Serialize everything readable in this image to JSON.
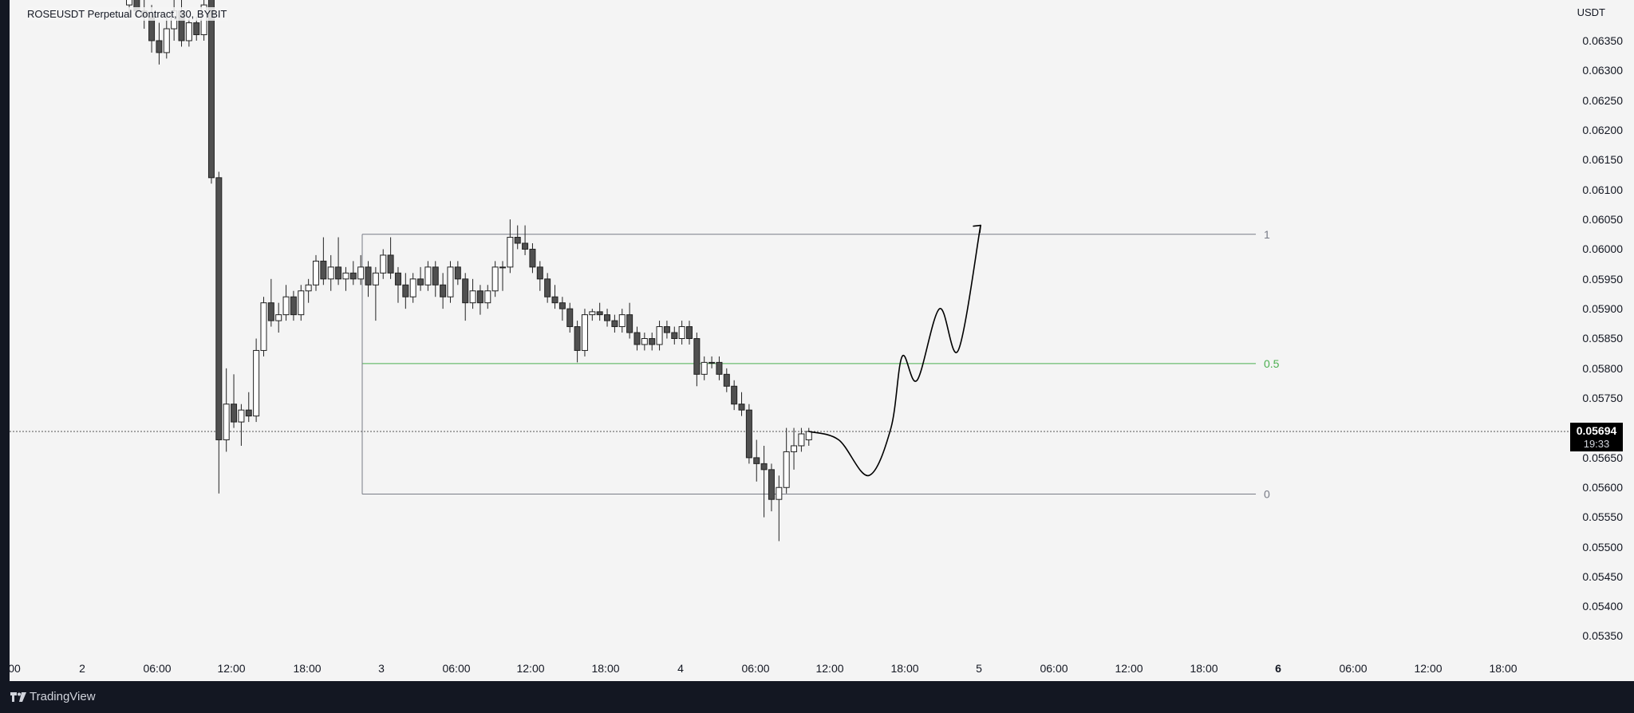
{
  "header": {
    "symbol_title": "ROSEUSDT Perpetual Contract, 30, BYBIT"
  },
  "price_axis": {
    "currency": "USDT",
    "ticks": [
      "0.06350",
      "0.06300",
      "0.06250",
      "0.06200",
      "0.06150",
      "0.06100",
      "0.06050",
      "0.06000",
      "0.05950",
      "0.05900",
      "0.05850",
      "0.05800",
      "0.05750",
      "0.05650",
      "0.05600",
      "0.05550",
      "0.05500",
      "0.05450",
      "0.05400",
      "0.05350"
    ]
  },
  "price_tag": {
    "price": "0.05694",
    "countdown": "19:33"
  },
  "time_axis": {
    "ticks": [
      "00",
      "2",
      "06:00",
      "12:00",
      "18:00",
      "3",
      "06:00",
      "12:00",
      "18:00",
      "4",
      "06:00",
      "12:00",
      "18:00",
      "5",
      "06:00",
      "12:00",
      "18:00",
      "6",
      "06:00",
      "12:00",
      "18:00"
    ]
  },
  "footer": {
    "brand": "TradingView"
  },
  "colors": {
    "up_candle": "#ffffff",
    "down_candle": "#505050",
    "fib_gray": "#787b86",
    "fib_green": "#4caf50",
    "background": "#f4f4f4",
    "footer_bg": "#131722"
  },
  "chart_data": {
    "type": "candlestick",
    "title": "ROSEUSDT Perpetual Contract, 30, BYBIT",
    "ylim": [
      0.053,
      0.0645
    ],
    "current_price": 0.05694,
    "fib_levels": [
      {
        "label": "1",
        "price": 0.06025
      },
      {
        "label": "0.5",
        "price": 0.05808
      },
      {
        "label": "0",
        "price": 0.05589
      }
    ],
    "candles": [
      {
        "o": 0.0641,
        "h": 0.0646,
        "l": 0.0639,
        "c": 0.0642
      },
      {
        "o": 0.0642,
        "h": 0.0645,
        "l": 0.0639,
        "c": 0.064
      },
      {
        "o": 0.064,
        "h": 0.0643,
        "l": 0.0637,
        "c": 0.0639
      },
      {
        "o": 0.0639,
        "h": 0.0641,
        "l": 0.0633,
        "c": 0.0635
      },
      {
        "o": 0.0635,
        "h": 0.0638,
        "l": 0.0631,
        "c": 0.0633
      },
      {
        "o": 0.0633,
        "h": 0.0639,
        "l": 0.0632,
        "c": 0.0637
      },
      {
        "o": 0.0637,
        "h": 0.0642,
        "l": 0.0635,
        "c": 0.064
      },
      {
        "o": 0.064,
        "h": 0.0642,
        "l": 0.0634,
        "c": 0.0635
      },
      {
        "o": 0.0635,
        "h": 0.0639,
        "l": 0.0634,
        "c": 0.0638
      },
      {
        "o": 0.0638,
        "h": 0.0639,
        "l": 0.0635,
        "c": 0.0636
      },
      {
        "o": 0.0636,
        "h": 0.0642,
        "l": 0.0635,
        "c": 0.0641
      },
      {
        "o": 0.0645,
        "h": 0.0646,
        "l": 0.0611,
        "c": 0.0612
      },
      {
        "o": 0.0612,
        "h": 0.0613,
        "l": 0.0559,
        "c": 0.0568
      },
      {
        "o": 0.0568,
        "h": 0.058,
        "l": 0.0566,
        "c": 0.0574
      },
      {
        "o": 0.0574,
        "h": 0.0579,
        "l": 0.057,
        "c": 0.0571
      },
      {
        "o": 0.0571,
        "h": 0.0574,
        "l": 0.0567,
        "c": 0.0573
      },
      {
        "o": 0.0573,
        "h": 0.0576,
        "l": 0.0571,
        "c": 0.0572
      },
      {
        "o": 0.0572,
        "h": 0.0585,
        "l": 0.0571,
        "c": 0.0583
      },
      {
        "o": 0.0583,
        "h": 0.0592,
        "l": 0.0582,
        "c": 0.0591
      },
      {
        "o": 0.0591,
        "h": 0.0595,
        "l": 0.0587,
        "c": 0.0588
      },
      {
        "o": 0.0588,
        "h": 0.0591,
        "l": 0.0586,
        "c": 0.0589
      },
      {
        "o": 0.0589,
        "h": 0.0594,
        "l": 0.0588,
        "c": 0.0592
      },
      {
        "o": 0.0592,
        "h": 0.0593,
        "l": 0.0588,
        "c": 0.0589
      },
      {
        "o": 0.0589,
        "h": 0.0594,
        "l": 0.0588,
        "c": 0.0593
      },
      {
        "o": 0.0593,
        "h": 0.0595,
        "l": 0.0591,
        "c": 0.0594
      },
      {
        "o": 0.0594,
        "h": 0.0599,
        "l": 0.0593,
        "c": 0.0598
      },
      {
        "o": 0.0598,
        "h": 0.0602,
        "l": 0.0594,
        "c": 0.0595
      },
      {
        "o": 0.0595,
        "h": 0.0599,
        "l": 0.0593,
        "c": 0.0597
      },
      {
        "o": 0.0597,
        "h": 0.0602,
        "l": 0.0594,
        "c": 0.0595
      },
      {
        "o": 0.0595,
        "h": 0.0597,
        "l": 0.0593,
        "c": 0.0596
      },
      {
        "o": 0.0596,
        "h": 0.0598,
        "l": 0.0594,
        "c": 0.0595
      },
      {
        "o": 0.0595,
        "h": 0.0599,
        "l": 0.0594,
        "c": 0.0597
      },
      {
        "o": 0.0597,
        "h": 0.0598,
        "l": 0.0592,
        "c": 0.0594
      },
      {
        "o": 0.0594,
        "h": 0.0597,
        "l": 0.0588,
        "c": 0.0596
      },
      {
        "o": 0.0596,
        "h": 0.06,
        "l": 0.0595,
        "c": 0.0599
      },
      {
        "o": 0.0599,
        "h": 0.0602,
        "l": 0.0595,
        "c": 0.0596
      },
      {
        "o": 0.0596,
        "h": 0.0597,
        "l": 0.0591,
        "c": 0.0594
      },
      {
        "o": 0.0594,
        "h": 0.0596,
        "l": 0.059,
        "c": 0.0592
      },
      {
        "o": 0.0592,
        "h": 0.0596,
        "l": 0.0591,
        "c": 0.0595
      },
      {
        "o": 0.0595,
        "h": 0.0597,
        "l": 0.0593,
        "c": 0.0594
      },
      {
        "o": 0.0594,
        "h": 0.0598,
        "l": 0.0593,
        "c": 0.0597
      },
      {
        "o": 0.0597,
        "h": 0.0598,
        "l": 0.0592,
        "c": 0.0594
      },
      {
        "o": 0.0594,
        "h": 0.0596,
        "l": 0.059,
        "c": 0.0592
      },
      {
        "o": 0.0592,
        "h": 0.0598,
        "l": 0.0591,
        "c": 0.0597
      },
      {
        "o": 0.0597,
        "h": 0.0598,
        "l": 0.0594,
        "c": 0.0595
      },
      {
        "o": 0.0595,
        "h": 0.0596,
        "l": 0.0588,
        "c": 0.0591
      },
      {
        "o": 0.0591,
        "h": 0.0595,
        "l": 0.059,
        "c": 0.0593
      },
      {
        "o": 0.0593,
        "h": 0.0594,
        "l": 0.0589,
        "c": 0.0591
      },
      {
        "o": 0.0591,
        "h": 0.0594,
        "l": 0.059,
        "c": 0.0593
      },
      {
        "o": 0.0593,
        "h": 0.0598,
        "l": 0.0592,
        "c": 0.0597
      },
      {
        "o": 0.0597,
        "h": 0.0598,
        "l": 0.0593,
        "c": 0.0597
      },
      {
        "o": 0.0597,
        "h": 0.0605,
        "l": 0.0596,
        "c": 0.0602
      },
      {
        "o": 0.0602,
        "h": 0.0604,
        "l": 0.06,
        "c": 0.0601
      },
      {
        "o": 0.0601,
        "h": 0.0604,
        "l": 0.0599,
        "c": 0.06
      },
      {
        "o": 0.06,
        "h": 0.0601,
        "l": 0.0596,
        "c": 0.0597
      },
      {
        "o": 0.0597,
        "h": 0.0598,
        "l": 0.0593,
        "c": 0.0595
      },
      {
        "o": 0.0595,
        "h": 0.0596,
        "l": 0.0591,
        "c": 0.0592
      },
      {
        "o": 0.0592,
        "h": 0.0594,
        "l": 0.059,
        "c": 0.0591
      },
      {
        "o": 0.0591,
        "h": 0.0592,
        "l": 0.0588,
        "c": 0.059
      },
      {
        "o": 0.059,
        "h": 0.0591,
        "l": 0.0586,
        "c": 0.0587
      },
      {
        "o": 0.0587,
        "h": 0.0588,
        "l": 0.0581,
        "c": 0.0583
      },
      {
        "o": 0.0583,
        "h": 0.059,
        "l": 0.0582,
        "c": 0.0589
      },
      {
        "o": 0.0589,
        "h": 0.059,
        "l": 0.0588,
        "c": 0.05895
      },
      {
        "o": 0.05895,
        "h": 0.0591,
        "l": 0.0588,
        "c": 0.0589
      },
      {
        "o": 0.0589,
        "h": 0.059,
        "l": 0.0587,
        "c": 0.0588
      },
      {
        "o": 0.0588,
        "h": 0.0589,
        "l": 0.0586,
        "c": 0.0587
      },
      {
        "o": 0.0587,
        "h": 0.059,
        "l": 0.0586,
        "c": 0.0589
      },
      {
        "o": 0.0589,
        "h": 0.0591,
        "l": 0.0585,
        "c": 0.0586
      },
      {
        "o": 0.0586,
        "h": 0.0587,
        "l": 0.0583,
        "c": 0.0584
      },
      {
        "o": 0.0584,
        "h": 0.0586,
        "l": 0.0583,
        "c": 0.0585
      },
      {
        "o": 0.0585,
        "h": 0.0586,
        "l": 0.0583,
        "c": 0.0584
      },
      {
        "o": 0.0584,
        "h": 0.0588,
        "l": 0.0583,
        "c": 0.0587
      },
      {
        "o": 0.0587,
        "h": 0.0588,
        "l": 0.0585,
        "c": 0.0586
      },
      {
        "o": 0.0586,
        "h": 0.0587,
        "l": 0.0584,
        "c": 0.0585
      },
      {
        "o": 0.0585,
        "h": 0.0588,
        "l": 0.0584,
        "c": 0.0587
      },
      {
        "o": 0.0587,
        "h": 0.0588,
        "l": 0.0584,
        "c": 0.0585
      },
      {
        "o": 0.0585,
        "h": 0.0586,
        "l": 0.0577,
        "c": 0.0579
      },
      {
        "o": 0.0579,
        "h": 0.0582,
        "l": 0.0578,
        "c": 0.0581
      },
      {
        "o": 0.0581,
        "h": 0.0582,
        "l": 0.058,
        "c": 0.0581
      },
      {
        "o": 0.0581,
        "h": 0.0582,
        "l": 0.0578,
        "c": 0.0579
      },
      {
        "o": 0.0579,
        "h": 0.058,
        "l": 0.0576,
        "c": 0.0577
      },
      {
        "o": 0.0577,
        "h": 0.0578,
        "l": 0.0573,
        "c": 0.0574
      },
      {
        "o": 0.0574,
        "h": 0.0576,
        "l": 0.0572,
        "c": 0.0573
      },
      {
        "o": 0.0573,
        "h": 0.0574,
        "l": 0.0564,
        "c": 0.0565
      },
      {
        "o": 0.0565,
        "h": 0.0568,
        "l": 0.0561,
        "c": 0.0564
      },
      {
        "o": 0.0564,
        "h": 0.0567,
        "l": 0.0555,
        "c": 0.0563
      },
      {
        "o": 0.0563,
        "h": 0.0564,
        "l": 0.0556,
        "c": 0.0558
      },
      {
        "o": 0.0558,
        "h": 0.0562,
        "l": 0.0551,
        "c": 0.056
      },
      {
        "o": 0.056,
        "h": 0.057,
        "l": 0.0559,
        "c": 0.0566
      },
      {
        "o": 0.0566,
        "h": 0.057,
        "l": 0.0563,
        "c": 0.0567
      },
      {
        "o": 0.0567,
        "h": 0.057,
        "l": 0.0566,
        "c": 0.0569
      },
      {
        "o": 0.0568,
        "h": 0.057,
        "l": 0.0567,
        "c": 0.05694
      }
    ],
    "projection": [
      {
        "candle": 91,
        "price": 0.05694
      },
      {
        "candle": 95,
        "price": 0.0568
      },
      {
        "candle": 99,
        "price": 0.0562
      },
      {
        "candle": 102,
        "price": 0.057
      },
      {
        "candle": 103.5,
        "price": 0.0582
      },
      {
        "candle": 105.5,
        "price": 0.0578
      },
      {
        "candle": 108.5,
        "price": 0.059
      },
      {
        "candle": 111,
        "price": 0.0583
      },
      {
        "candle": 114,
        "price": 0.0604
      }
    ]
  }
}
